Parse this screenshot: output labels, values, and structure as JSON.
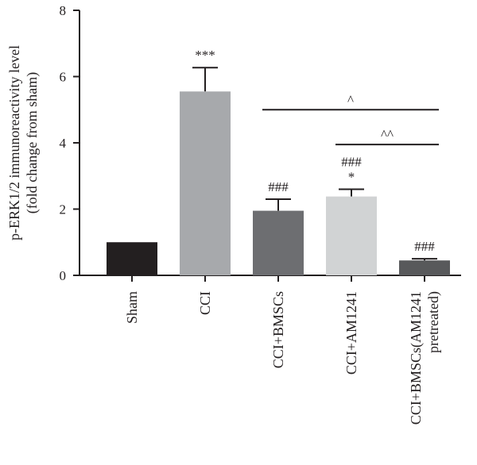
{
  "chart_data": {
    "type": "bar",
    "title": "",
    "ylabel_line1": "p-ERK1/2 immunoreactivity level",
    "ylabel_line2": "(fold change from sham)",
    "xlabel": "",
    "ylim": [
      0,
      8
    ],
    "yticks": [
      0,
      2,
      4,
      6,
      8
    ],
    "grid": false,
    "categories": [
      [
        "Sham"
      ],
      [
        "CCI"
      ],
      [
        "CCI+BMSCs"
      ],
      [
        "CCI+AM1241"
      ],
      [
        "CCI+BMSCs(AM1241",
        "pretreated)"
      ]
    ],
    "values": [
      1.0,
      5.55,
      1.95,
      2.38,
      0.45
    ],
    "errors": [
      0,
      0.72,
      0.35,
      0.22,
      0.05
    ],
    "bar_colors": [
      "#231f20",
      "#a7a9ac",
      "#6d6e71",
      "#d1d3d4",
      "#58595b"
    ],
    "annotations": [
      {
        "bar": 1,
        "lines": [
          "***"
        ]
      },
      {
        "bar": 2,
        "lines": [
          "###"
        ]
      },
      {
        "bar": 3,
        "lines": [
          "###",
          "*"
        ]
      },
      {
        "bar": 4,
        "lines": [
          "###"
        ]
      }
    ],
    "brackets": [
      {
        "from": 2,
        "to": 4,
        "y": 5.0,
        "label": "^"
      },
      {
        "from": 3,
        "to": 4,
        "y": 3.95,
        "label": "^^"
      }
    ]
  }
}
